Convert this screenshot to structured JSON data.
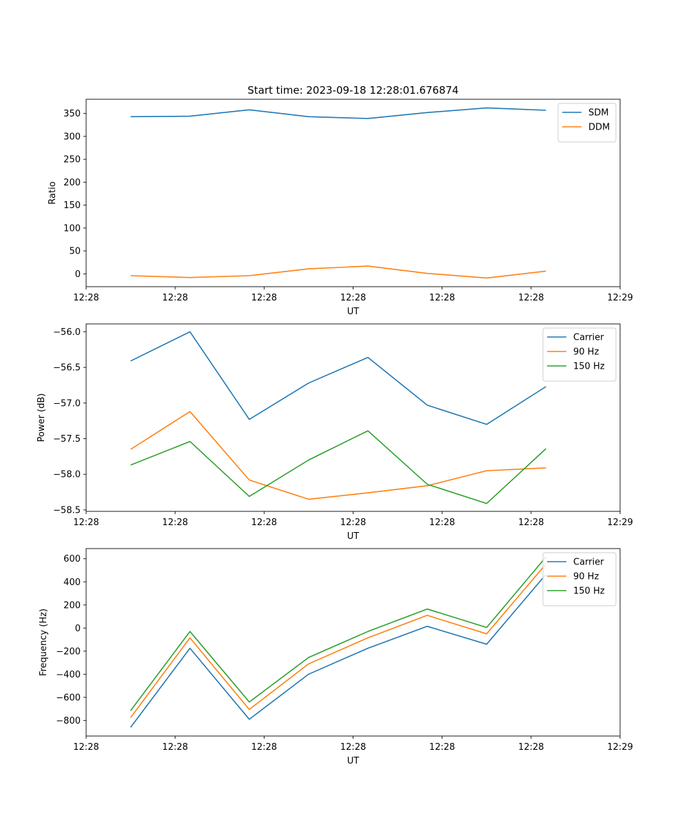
{
  "colors": {
    "blue": "#1f77b4",
    "orange": "#ff7f0e",
    "green": "#2ca02c"
  },
  "chart_data": [
    {
      "type": "line",
      "title": "Start time: 2023-09-18 12:28:01.676874",
      "xlabel": "UT",
      "ylabel": "Ratio",
      "x": [
        1,
        2,
        3,
        4,
        5,
        6,
        7,
        8
      ],
      "xlim": [
        0.25,
        9.25
      ],
      "xticks": [
        0.25,
        1.75,
        3.25,
        4.75,
        6.25,
        7.75,
        9.25
      ],
      "xticklabels": [
        "12:28",
        "12:28",
        "12:28",
        "12:28",
        "12:28",
        "12:28",
        "12:29"
      ],
      "ylim": [
        -28,
        381
      ],
      "yticks": [
        0,
        50,
        100,
        150,
        200,
        250,
        300,
        350
      ],
      "yticklabels": [
        "0",
        "50",
        "100",
        "150",
        "200",
        "250",
        "300",
        "350"
      ],
      "legend_position": "upper-right",
      "series": [
        {
          "name": "SDM",
          "color": "#1f77b4",
          "values": [
            343,
            344,
            358,
            343,
            339,
            352,
            362,
            357
          ]
        },
        {
          "name": "DDM",
          "color": "#ff7f0e",
          "values": [
            -4,
            -8,
            -4,
            11,
            17,
            1,
            -9,
            6
          ]
        }
      ]
    },
    {
      "type": "line",
      "title": "",
      "xlabel": "UT",
      "ylabel": "Power (dB)",
      "x": [
        1,
        2,
        3,
        4,
        5,
        6,
        7,
        8
      ],
      "xlim": [
        0.25,
        9.25
      ],
      "xticks": [
        0.25,
        1.75,
        3.25,
        4.75,
        6.25,
        7.75,
        9.25
      ],
      "xticklabels": [
        "12:28",
        "12:28",
        "12:28",
        "12:28",
        "12:28",
        "12:28",
        "12:29"
      ],
      "ylim": [
        -58.52,
        -55.89
      ],
      "yticks": [
        -58.5,
        -58.0,
        -57.5,
        -57.0,
        -56.5,
        -56.0
      ],
      "yticklabels": [
        "−58.5",
        "−58.0",
        "−57.5",
        "−57.0",
        "−56.5",
        "−56.0"
      ],
      "legend_position": "upper-right",
      "series": [
        {
          "name": "Carrier",
          "color": "#1f77b4",
          "values": [
            -56.41,
            -56.0,
            -57.23,
            -56.72,
            -56.36,
            -57.03,
            -57.3,
            -56.77
          ]
        },
        {
          "name": "90 Hz",
          "color": "#ff7f0e",
          "values": [
            -57.65,
            -57.12,
            -58.08,
            -58.35,
            -58.26,
            -58.16,
            -57.95,
            -57.91
          ]
        },
        {
          "name": "150 Hz",
          "color": "#2ca02c",
          "values": [
            -57.87,
            -57.54,
            -58.31,
            -57.8,
            -57.39,
            -58.14,
            -58.41,
            -57.64
          ]
        }
      ]
    },
    {
      "type": "line",
      "title": "",
      "xlabel": "UT",
      "ylabel": "Frequency (Hz)",
      "x": [
        1,
        2,
        3,
        4,
        5,
        6,
        7,
        8
      ],
      "xlim": [
        0.25,
        9.25
      ],
      "xticks": [
        0.25,
        1.75,
        3.25,
        4.75,
        6.25,
        7.75,
        9.25
      ],
      "xticklabels": [
        "12:28",
        "12:28",
        "12:28",
        "12:28",
        "12:28",
        "12:28",
        "12:29"
      ],
      "ylim": [
        -935,
        688
      ],
      "yticks": [
        -800,
        -600,
        -400,
        -200,
        0,
        200,
        400,
        600
      ],
      "yticklabels": [
        "−800",
        "−600",
        "−400",
        "−200",
        "0",
        "200",
        "400",
        "600"
      ],
      "legend_position": "upper-right",
      "series": [
        {
          "name": "Carrier",
          "color": "#1f77b4",
          "values": [
            -860,
            -175,
            -790,
            -400,
            -175,
            15,
            -140,
            465
          ]
        },
        {
          "name": "90 Hz",
          "color": "#ff7f0e",
          "values": [
            -775,
            -85,
            -705,
            -310,
            -85,
            110,
            -50,
            555
          ]
        },
        {
          "name": "150 Hz",
          "color": "#2ca02c",
          "values": [
            -715,
            -30,
            -640,
            -255,
            -30,
            165,
            5,
            615
          ]
        }
      ]
    }
  ]
}
